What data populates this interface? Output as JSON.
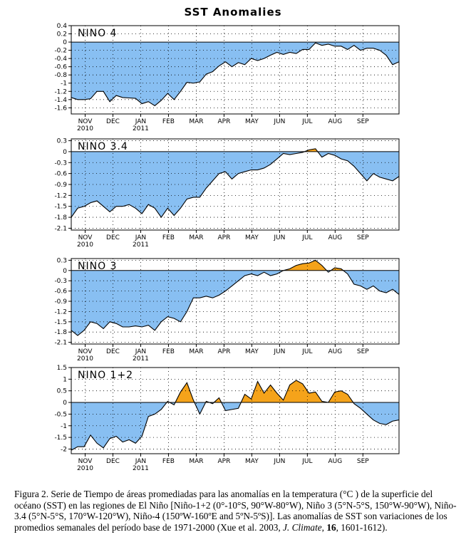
{
  "title": "SST Anomalies",
  "caption": {
    "p1": "Figura 2. Serie de Tiempo de áreas promediadas para las anomalías en la temperatura (°C ) de la superficie del océano (SST) en las regiones de El Niño [Niño-1+2 (0°-10°S, 90°W-80°W), Niño 3 (5°N-5°S, 150°W-90°W), Niño-3.4 (5°N-5°S, 170°W-120°W), Niño-4 (150ºW-160ºE and 5ºN-5ºS)]. Las anomalías de SST son variaciones de los promedios semanales del período base de 1971-2000 (Xue et al. 2003, ",
    "journal": "J. Climate",
    "p2": ", ",
    "volume": "16",
    "p3": ", 1601-1612)."
  },
  "colors": {
    "negative": "#88bff2",
    "positive": "#f5a31a",
    "line": "#000000",
    "grid": "#000000"
  },
  "chart_data": [
    {
      "type": "area",
      "label": "NINO 4",
      "ylim": [
        -1.75,
        0.4
      ],
      "yticks": [
        0.4,
        0.2,
        0,
        -0.2,
        -0.4,
        -0.6,
        -0.8,
        -1,
        -1.2,
        -1.4,
        -1.6
      ],
      "x_month_labels": [
        "NOV",
        "DEC",
        "JAN",
        "FEB",
        "MAR",
        "APR",
        "MAY",
        "JUN",
        "JUL",
        "AUG",
        "SEP"
      ],
      "x_year_labels": [
        {
          "under": "NOV",
          "text": "2010"
        },
        {
          "under": "JAN",
          "text": "2011"
        }
      ],
      "grid": true,
      "values": [
        -1.35,
        -1.4,
        -1.4,
        -1.38,
        -1.2,
        -1.2,
        -1.45,
        -1.3,
        -1.35,
        -1.36,
        -1.37,
        -1.5,
        -1.45,
        -1.55,
        -1.42,
        -1.25,
        -1.4,
        -1.2,
        -0.98,
        -1.0,
        -0.97,
        -0.78,
        -0.72,
        -0.58,
        -0.48,
        -0.6,
        -0.5,
        -0.55,
        -0.4,
        -0.45,
        -0.4,
        -0.32,
        -0.25,
        -0.3,
        -0.25,
        -0.28,
        -0.18,
        -0.18,
        -0.02,
        -0.08,
        -0.05,
        -0.1,
        -0.1,
        -0.18,
        -0.08,
        -0.2,
        -0.15,
        -0.15,
        -0.2,
        -0.32,
        -0.55,
        -0.48
      ]
    },
    {
      "type": "area",
      "label": "NINO 3.4",
      "ylim": [
        -2.15,
        0.35
      ],
      "yticks": [
        0.3,
        0,
        -0.3,
        -0.6,
        -0.9,
        -1.2,
        -1.5,
        -1.8,
        -2.1
      ],
      "x_month_labels": [
        "NOV",
        "DEC",
        "JAN",
        "FEB",
        "MAR",
        "APR",
        "MAY",
        "JUN",
        "JUL",
        "AUG",
        "SEP"
      ],
      "x_year_labels": [
        {
          "under": "NOV",
          "text": "2010"
        },
        {
          "under": "JAN",
          "text": "2011"
        }
      ],
      "grid": true,
      "values": [
        -1.8,
        -1.55,
        -1.5,
        -1.4,
        -1.35,
        -1.5,
        -1.65,
        -1.5,
        -1.5,
        -1.45,
        -1.55,
        -1.7,
        -1.45,
        -1.55,
        -1.8,
        -1.55,
        -1.75,
        -1.55,
        -1.3,
        -1.25,
        -1.25,
        -1.0,
        -0.8,
        -0.6,
        -0.55,
        -0.75,
        -0.6,
        -0.55,
        -0.5,
        -0.5,
        -0.45,
        -0.35,
        -0.2,
        -0.05,
        -0.08,
        -0.05,
        -0.02,
        0.05,
        0.08,
        -0.15,
        -0.05,
        -0.1,
        -0.2,
        -0.25,
        -0.4,
        -0.6,
        -0.8,
        -0.6,
        -0.7,
        -0.75,
        -0.8,
        -0.68
      ]
    },
    {
      "type": "area",
      "label": "NINO 3",
      "ylim": [
        -2.15,
        0.35
      ],
      "yticks": [
        0.3,
        0,
        -0.3,
        -0.6,
        -0.9,
        -1.2,
        -1.5,
        -1.8,
        -2.1
      ],
      "x_month_labels": [
        "NOV",
        "DEC",
        "JAN",
        "FEB",
        "MAR",
        "APR",
        "MAY",
        "JUN",
        "JUL",
        "AUG",
        "SEP"
      ],
      "x_year_labels": [
        {
          "under": "NOV",
          "text": "2010"
        },
        {
          "under": "JAN",
          "text": "2011"
        }
      ],
      "grid": true,
      "values": [
        -1.75,
        -1.9,
        -1.75,
        -1.5,
        -1.55,
        -1.7,
        -1.5,
        -1.55,
        -1.65,
        -1.65,
        -1.62,
        -1.65,
        -1.6,
        -1.75,
        -1.5,
        -1.35,
        -1.4,
        -1.5,
        -1.2,
        -0.8,
        -0.8,
        -0.75,
        -0.8,
        -0.72,
        -0.6,
        -0.45,
        -0.3,
        -0.15,
        -0.1,
        -0.15,
        -0.05,
        -0.15,
        -0.1,
        0.0,
        0.05,
        0.15,
        0.2,
        0.22,
        0.3,
        0.15,
        -0.05,
        0.08,
        0.05,
        -0.1,
        -0.4,
        -0.45,
        -0.55,
        -0.45,
        -0.6,
        -0.65,
        -0.55,
        -0.7
      ]
    },
    {
      "type": "area",
      "label": "NINO 1+2",
      "ylim": [
        -2.2,
        1.5
      ],
      "yticks": [
        1.5,
        1,
        0.5,
        0,
        -0.5,
        -1,
        -1.5,
        -2
      ],
      "x_month_labels": [
        "NOV",
        "DEC",
        "JAN",
        "FEB",
        "MAR",
        "APR",
        "MAY",
        "JUN",
        "JUL",
        "AUG",
        "SEP"
      ],
      "x_year_labels": [
        {
          "under": "NOV",
          "text": "2010"
        },
        {
          "under": "JAN",
          "text": "2011"
        }
      ],
      "grid": true,
      "values": [
        -2.05,
        -1.9,
        -1.9,
        -1.4,
        -1.75,
        -1.95,
        -1.55,
        -1.45,
        -1.7,
        -1.6,
        -1.75,
        -1.45,
        -0.6,
        -0.5,
        -0.3,
        0.05,
        -0.1,
        0.45,
        0.85,
        0.1,
        -0.5,
        0.05,
        -0.05,
        0.2,
        -0.35,
        -0.3,
        -0.25,
        0.35,
        0.15,
        0.9,
        0.4,
        0.75,
        0.4,
        0.1,
        0.75,
        0.95,
        0.8,
        0.4,
        0.45,
        0.05,
        0.0,
        0.45,
        0.5,
        0.35,
        -0.05,
        -0.25,
        -0.5,
        -0.75,
        -0.9,
        -0.95,
        -0.8,
        -0.75
      ]
    }
  ]
}
